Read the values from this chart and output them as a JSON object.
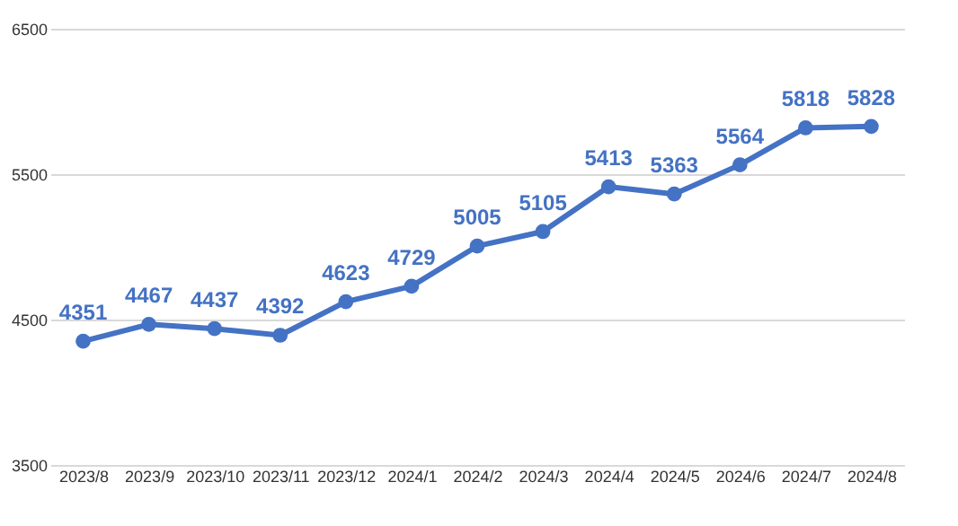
{
  "chart_data": {
    "type": "line",
    "categories": [
      "2023/8",
      "2023/9",
      "2023/10",
      "2023/11",
      "2023/12",
      "2024/1",
      "2024/2",
      "2024/3",
      "2024/4",
      "2024/5",
      "2024/6",
      "2024/7",
      "2024/8"
    ],
    "series": [
      {
        "color": "#4472c4",
        "values": [
          4351,
          4467,
          4437,
          4392,
          4623,
          4729,
          5005,
          5105,
          5413,
          5363,
          5564,
          5818,
          5828
        ]
      }
    ],
    "ylim": [
      3500,
      6500
    ],
    "yticks": [
      3500,
      4500,
      5500,
      6500
    ],
    "grid": "y",
    "marker": "circle",
    "line_style": "solid",
    "data_labels": true
  }
}
